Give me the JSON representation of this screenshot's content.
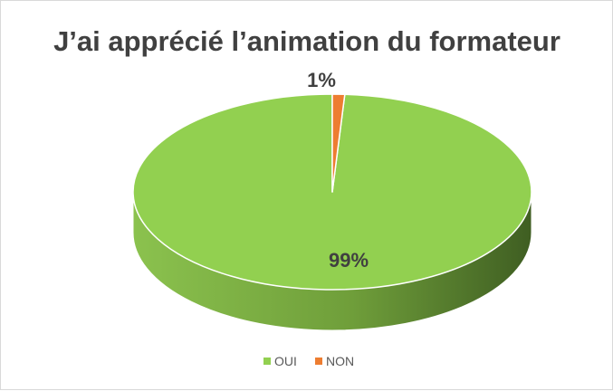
{
  "chart_data": {
    "type": "pie",
    "title": "J’ai apprécié l’animation du formateur",
    "categories": [
      "OUI",
      "NON"
    ],
    "values": [
      99,
      1
    ],
    "data_labels": [
      "99%",
      "1%"
    ],
    "colors": [
      "#92d050",
      "#ed7d31"
    ],
    "legend": {
      "position": "bottom",
      "items": [
        {
          "label": "OUI",
          "color": "#92d050"
        },
        {
          "label": "NON",
          "color": "#ed7d31"
        }
      ]
    },
    "style": "3d"
  }
}
